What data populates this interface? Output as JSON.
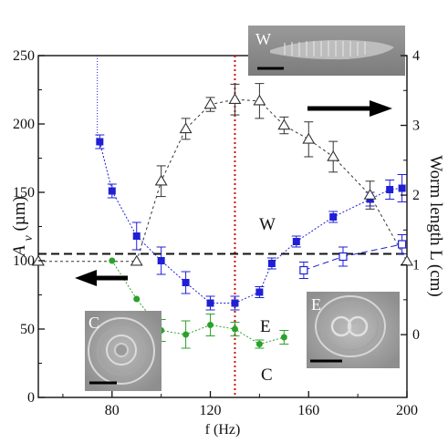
{
  "chart_data": {
    "type": "scatter",
    "xlabel": "f (Hz)",
    "ylabel_left": "A_v (µm)",
    "ylabel_right": "Worm length L (cm)",
    "x_ticks": [
      "80",
      "120",
      "160",
      "200"
    ],
    "y_left_ticks": [
      "0",
      "50",
      "100",
      "150",
      "200",
      "250"
    ],
    "y_right_ticks": [
      "0",
      "1",
      "2",
      "3",
      "4"
    ],
    "xlim": [
      50,
      200
    ],
    "ylim_left": [
      0,
      250
    ],
    "ylim_right": [
      -0.9,
      4
    ],
    "grid": false,
    "vertical_line_x": 130,
    "horizontal_dashed_line_y_left": 105,
    "series": [
      {
        "marker": "filled-square",
        "color": "#1f1fd6",
        "axis": "left",
        "x": [
          75,
          80,
          90,
          100,
          110,
          120,
          130,
          140,
          145,
          155,
          170,
          185,
          193,
          198
        ],
        "y": [
          187,
          151,
          118,
          100,
          84,
          69,
          69,
          77,
          98,
          114,
          132,
          145,
          152,
          153
        ],
        "yerr": [
          5,
          5,
          10,
          10,
          8,
          5,
          5,
          4,
          4,
          4,
          4,
          5,
          7,
          10
        ],
        "leading_dotted_to_x": 74
      },
      {
        "marker": "open-square",
        "color": "#1f1fd6",
        "axis": "left",
        "x": [
          158,
          174,
          198
        ],
        "y": [
          93,
          103,
          112
        ],
        "yerr": [
          6,
          7,
          7
        ]
      },
      {
        "marker": "filled-circle",
        "color": "#2aa22a",
        "axis": "left",
        "x": [
          80,
          90,
          100,
          110,
          120,
          130,
          140,
          150
        ],
        "y": [
          100,
          72,
          49,
          46,
          53,
          50,
          39,
          44
        ],
        "yerr": [
          0,
          0,
          8,
          10,
          8,
          5,
          3,
          5
        ]
      },
      {
        "marker": "open-triangle",
        "color": "#333333",
        "axis": "right",
        "x": [
          50,
          90,
          100,
          110,
          120,
          130,
          140,
          150,
          160,
          170,
          185,
          200
        ],
        "y": [
          1.05,
          1.05,
          2.2,
          2.95,
          3.3,
          3.37,
          3.35,
          3.0,
          2.8,
          2.55,
          2.0,
          1.05
        ],
        "yerr": [
          0,
          0,
          0.22,
          0.15,
          0.1,
          0.22,
          0.25,
          0.12,
          0.25,
          0.22,
          0.2,
          0
        ]
      }
    ],
    "annotations": [
      "W",
      "E",
      "C"
    ]
  },
  "insets": {
    "W": "W",
    "C": "C",
    "E": "E"
  },
  "colors": {
    "blue": "#1f1fd6",
    "green": "#2aa22a",
    "red_line": "#d01010",
    "dark": "#222222"
  }
}
